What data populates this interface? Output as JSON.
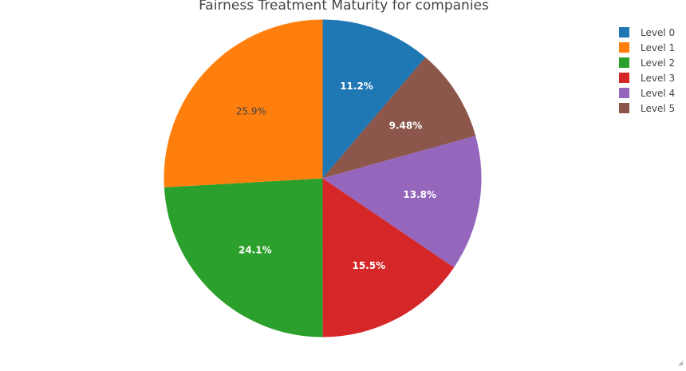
{
  "chart_data": {
    "type": "pie",
    "title": "Fairness Treatment Maturity for companies",
    "categories": [
      "Level 0",
      "Level 1",
      "Level 2",
      "Level 3",
      "Level 4",
      "Level 5"
    ],
    "values": [
      11.2,
      25.9,
      24.1,
      15.5,
      13.8,
      9.48
    ],
    "labels": [
      "11.2%",
      "25.9%",
      "24.1%",
      "15.5%",
      "13.8%",
      "9.48%"
    ],
    "colors": [
      "#1f77b4",
      "#ff7f0e",
      "#2ca02c",
      "#d62728",
      "#9467bd",
      "#8c564b"
    ],
    "direction": "counterclockwise",
    "start_angle": "top",
    "legend_position": "top-right"
  }
}
